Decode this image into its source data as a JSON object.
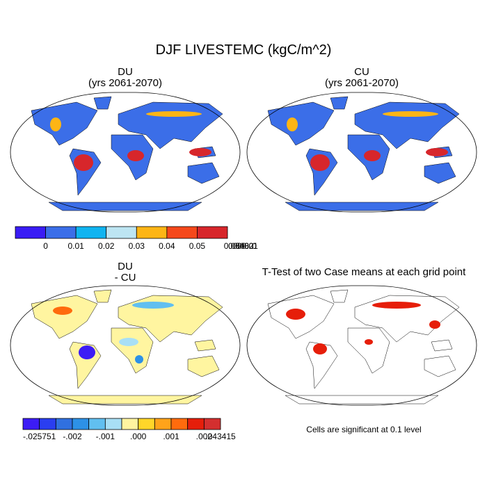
{
  "title": "DJF LIVESTEMC (kgC/m^2)",
  "panels": [
    {
      "title": "DU",
      "subtitle": "(yrs 2061-2070)"
    },
    {
      "title": "CU",
      "subtitle": "(yrs 2061-2070)"
    },
    {
      "title": "DU",
      "subtitle": "- CU"
    },
    {
      "title": "T-Test of two Case means at each grid point"
    }
  ],
  "colorbars": [
    {
      "colors": [
        "#3a1cf5",
        "#3b6ee8",
        "#10b4f0",
        "#bde5f2",
        "#fdb515",
        "#f5481a",
        "#d7262b"
      ],
      "labels": [
        "0",
        "0.01",
        "0.02",
        "0.03",
        "0.04",
        "0.05"
      ]
    },
    {
      "colors": [
        "#3c1cf5",
        "#2a3ef0",
        "#3070e0",
        "#2d91e6",
        "#61bff0",
        "#a8dff5",
        "#fff5a0",
        "#ffd629",
        "#ffa31a",
        "#ff6b0d",
        "#e61e0a",
        "#d42f2f"
      ],
      "labels": [
        "-.025751",
        "-.002",
        "-.001",
        ".000",
        ".001",
        ".002",
        ".043415"
      ]
    }
  ],
  "note": "Cells are significant at 0.1 level"
}
